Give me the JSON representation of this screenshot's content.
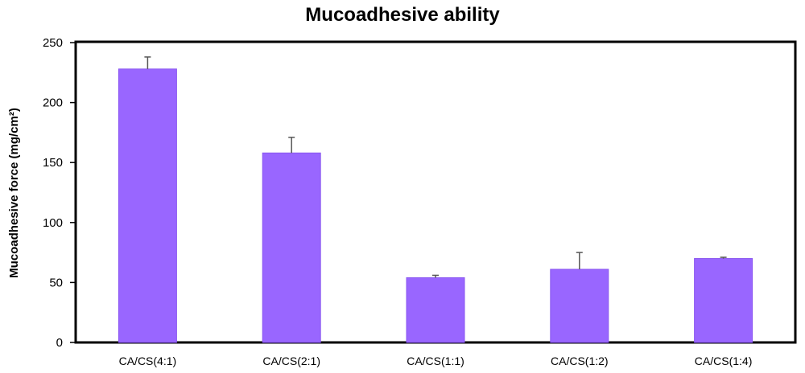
{
  "chart_data": {
    "type": "bar",
    "title": "Mucoadhesive ability",
    "xlabel": "",
    "ylabel": "Mucoadhesive force (mg/cm²)",
    "categories": [
      "CA/CS(4:1)",
      "CA/CS(2:1)",
      "CA/CS(1:1)",
      "CA/CS(1:2)",
      "CA/CS(1:4)"
    ],
    "values": [
      228,
      158,
      54,
      61,
      70
    ],
    "error_upper": [
      10,
      13,
      2,
      14,
      1
    ],
    "ylim": [
      0,
      250
    ],
    "yticks": [
      0,
      50,
      100,
      150,
      200,
      250
    ],
    "grid": false,
    "legend": false,
    "colors": {
      "bar": "#9966ff",
      "bar_stroke": "#8a57f0",
      "error_bar": "#555555",
      "frame": "#000000",
      "text": "#000000"
    }
  }
}
